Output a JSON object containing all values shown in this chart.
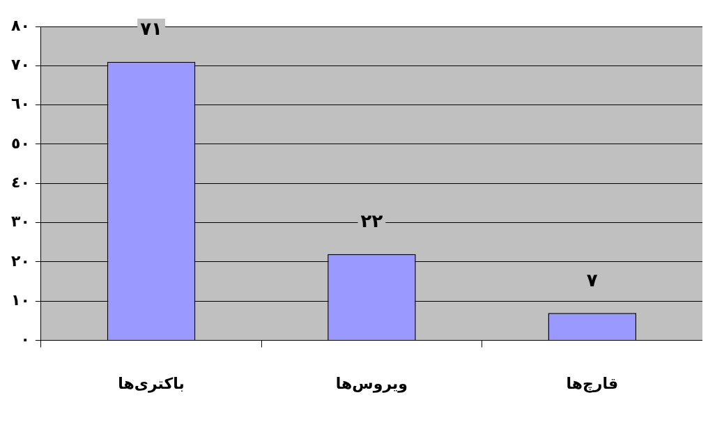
{
  "chart_data": {
    "type": "bar",
    "categories": [
      "باکتری‌ها",
      "ویروس‌ها",
      "قارچ‌ها"
    ],
    "series": [
      {
        "color": "#9999ff",
        "values": [
          71,
          22,
          7
        ],
        "value_labels": [
          "٧١",
          "٢٢",
          "٧"
        ]
      }
    ],
    "ylim": [
      0,
      80
    ],
    "yticks": [
      {
        "value": 0,
        "label": "٠"
      },
      {
        "value": 10,
        "label": "١٠"
      },
      {
        "value": 20,
        "label": "٢٠"
      },
      {
        "value": 30,
        "label": "٣٠"
      },
      {
        "value": 40,
        "label": "٤٠"
      },
      {
        "value": 50,
        "label": "٥٠"
      },
      {
        "value": 60,
        "label": "٦٠"
      },
      {
        "value": 70,
        "label": "٧٠"
      },
      {
        "value": 80,
        "label": "٨٠"
      }
    ],
    "grid": "y",
    "legend": false
  }
}
